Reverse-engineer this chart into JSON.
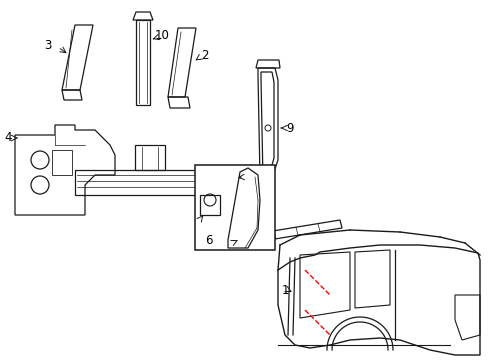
{
  "background_color": "#ffffff",
  "line_color": "#1a1a1a",
  "red_line_color": "#ff0000",
  "label_color": "#000000",
  "fig_width": 4.89,
  "fig_height": 3.6,
  "dpi": 100
}
